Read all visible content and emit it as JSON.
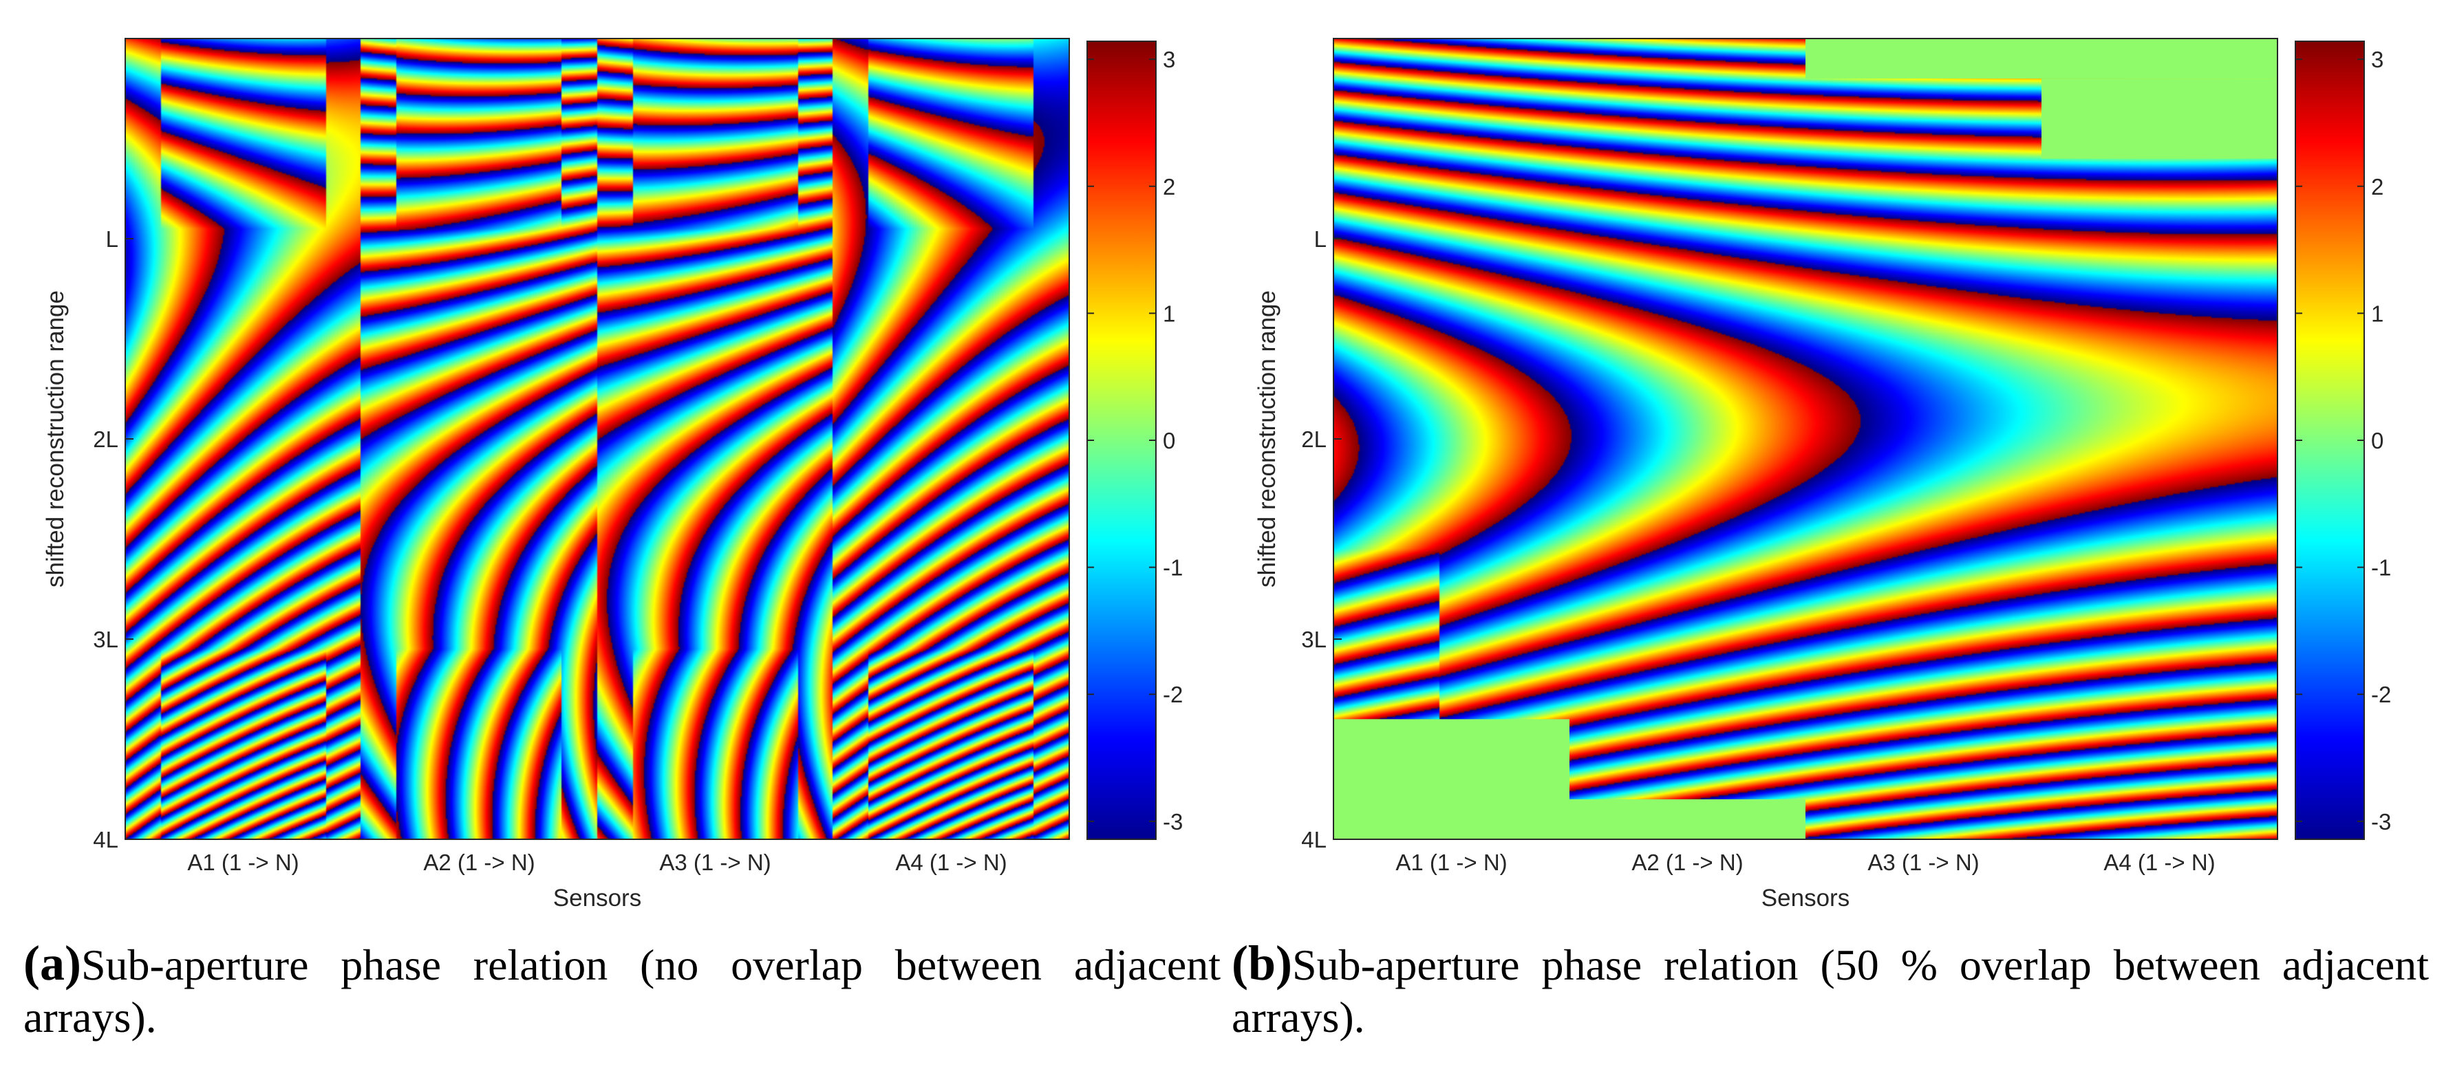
{
  "chart_data": [
    {
      "type": "heatmap",
      "panel_label": "(a)",
      "caption": "Sub-aperture phase relation (no overlap between adjacent arrays).",
      "xlabel": "Sensors",
      "ylabel": "shifted reconstruction range",
      "x_ticks": [
        "A1 (1 -> N)",
        "A2 (1 -> N)",
        "A3 (1 -> N)",
        "A4 (1 -> N)"
      ],
      "y_ticks": [
        "L",
        "2L",
        "3L",
        "4L"
      ],
      "ylim": [
        0,
        4
      ],
      "colorbar_range": [
        -3.1416,
        3.1416
      ],
      "colorbar_ticks": [
        "3",
        "2",
        "1",
        "0",
        "-1",
        "-2",
        "-3"
      ],
      "colormap": "jet",
      "overlap_percent": 0,
      "arrays": [
        {
          "name": "A1",
          "saddle_range": 2.0,
          "saddle_sign": 1
        },
        {
          "name": "A2",
          "saddle_range": 1.95,
          "saddle_sign": -1
        },
        {
          "name": "A3",
          "saddle_range": 1.9,
          "saddle_sign": -1
        },
        {
          "name": "A4",
          "saddle_range": 1.85,
          "saddle_sign": 1
        }
      ]
    },
    {
      "type": "heatmap",
      "panel_label": "(b)",
      "caption": "Sub-aperture phase relation (50 % overlap between adjacent arrays).",
      "xlabel": "Sensors",
      "ylabel": "shifted reconstruction range",
      "x_ticks": [
        "A1 (1 -> N)",
        "A2 (1 -> N)",
        "A3 (1 -> N)",
        "A4 (1 -> N)"
      ],
      "y_ticks": [
        "L",
        "2L",
        "3L",
        "4L"
      ],
      "ylim": [
        0,
        4
      ],
      "colorbar_range": [
        -3.1416,
        3.1416
      ],
      "colorbar_ticks": [
        "3",
        "2",
        "1",
        "0",
        "-1",
        "-2",
        "-3"
      ],
      "colormap": "jet",
      "overlap_percent": 50,
      "masked_color": "#8ffa6a",
      "masked_regions": [
        {
          "sensor_start": 2,
          "sensor_end": 4,
          "range_start": 0,
          "range_end": 0.2
        },
        {
          "sensor_start": 3,
          "sensor_end": 4,
          "range_start": 0.2,
          "range_end": 0.6
        },
        {
          "sensor_start": 0,
          "sensor_end": 1,
          "range_start": 3.4,
          "range_end": 4
        },
        {
          "sensor_start": 1,
          "sensor_end": 2,
          "range_start": 3.8,
          "range_end": 4
        }
      ]
    }
  ]
}
